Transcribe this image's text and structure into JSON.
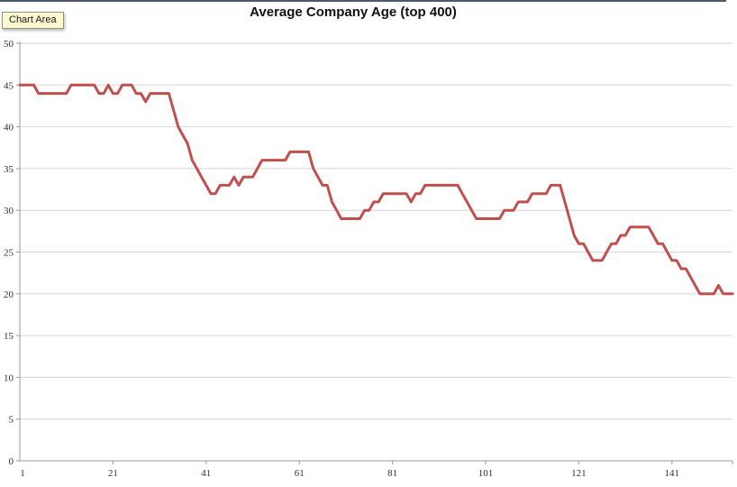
{
  "window": {
    "tooltip_label": "Chart Area"
  },
  "colors": {
    "background": "#ffffff",
    "line": "#C0504D",
    "gridline": "#D6D6D6",
    "axis": "#9a9a9a",
    "tick_text": "#333333",
    "title_text": "#111111",
    "tooltip_bg": "#fbf9cf",
    "tooltip_border": "#94947e",
    "top_edge": "#4f5a6e"
  },
  "chart_data": {
    "type": "line",
    "title": "Average Company Age (top 400)",
    "xlabel": "",
    "ylabel": "",
    "legend": "none",
    "grid": true,
    "ylim": [
      0,
      50
    ],
    "y_ticks": [
      0,
      5,
      10,
      15,
      20,
      25,
      30,
      35,
      40,
      45,
      50
    ],
    "x_start": 1,
    "n_points": 154,
    "x_tick_labels": [
      1,
      21,
      41,
      61,
      81,
      101,
      121,
      141
    ],
    "line_color": "#C0504D",
    "line_width": 3,
    "values": [
      45,
      45,
      45,
      45,
      44,
      44,
      44,
      44,
      44,
      44,
      44,
      45,
      45,
      45,
      45,
      45,
      45,
      44,
      44,
      45,
      44,
      44,
      45,
      45,
      45,
      44,
      44,
      43,
      44,
      44,
      44,
      44,
      44,
      42,
      40,
      39,
      38,
      36,
      35,
      34,
      33,
      32,
      32,
      33,
      33,
      33,
      34,
      33,
      34,
      34,
      34,
      35,
      36,
      36,
      36,
      36,
      36,
      36,
      37,
      37,
      37,
      37,
      37,
      35,
      34,
      33,
      33,
      31,
      30,
      29,
      29,
      29,
      29,
      29,
      30,
      30,
      31,
      31,
      32,
      32,
      32,
      32,
      32,
      32,
      31,
      32,
      32,
      33,
      33,
      33,
      33,
      33,
      33,
      33,
      33,
      32,
      31,
      30,
      29,
      29,
      29,
      29,
      29,
      29,
      30,
      30,
      30,
      31,
      31,
      31,
      32,
      32,
      32,
      32,
      33,
      33,
      33,
      31,
      29,
      27,
      26,
      26,
      25,
      24,
      24,
      24,
      25,
      26,
      26,
      27,
      27,
      28,
      28,
      28,
      28,
      28,
      27,
      26,
      26,
      25,
      24,
      24,
      23,
      23,
      22,
      21,
      20,
      20,
      20,
      20,
      21,
      20,
      20,
      20
    ]
  }
}
